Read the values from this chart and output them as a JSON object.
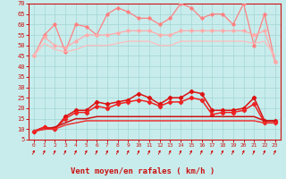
{
  "xlabel": "Vent moyen/en rafales ( km/h )",
  "bg_color": "#c8ecec",
  "grid_color": "#a8d8d8",
  "x": [
    0,
    1,
    2,
    3,
    4,
    5,
    6,
    7,
    8,
    9,
    10,
    11,
    12,
    13,
    14,
    15,
    16,
    17,
    18,
    19,
    20,
    21,
    22,
    23
  ],
  "series": [
    {
      "name": "rafales_max",
      "color": "#ff8080",
      "alpha": 1.0,
      "lw": 0.9,
      "marker": "D",
      "ms": 1.8,
      "values": [
        45,
        55,
        60,
        47,
        60,
        59,
        55,
        65,
        68,
        66,
        63,
        63,
        60,
        63,
        70,
        68,
        63,
        65,
        65,
        60,
        70,
        50,
        65,
        42
      ]
    },
    {
      "name": "rafales_moy1",
      "color": "#ffaaaa",
      "alpha": 1.0,
      "lw": 0.9,
      "marker": "D",
      "ms": 1.8,
      "values": [
        45,
        54,
        50,
        49,
        52,
        55,
        55,
        55,
        56,
        57,
        57,
        57,
        55,
        55,
        57,
        57,
        57,
        57,
        57,
        57,
        57,
        55,
        57,
        42
      ]
    },
    {
      "name": "rafales_moy2",
      "color": "#ffbbbb",
      "alpha": 1.0,
      "lw": 0.9,
      "marker": null,
      "ms": 0,
      "values": [
        45,
        51,
        48,
        47,
        48,
        50,
        50,
        50,
        51,
        52,
        52,
        52,
        50,
        50,
        52,
        52,
        52,
        52,
        52,
        52,
        52,
        51,
        52,
        45
      ]
    },
    {
      "name": "vent_max",
      "color": "#dd1111",
      "alpha": 1.0,
      "lw": 1.1,
      "marker": "D",
      "ms": 2.2,
      "values": [
        9,
        11,
        10,
        16,
        19,
        19,
        23,
        22,
        23,
        24,
        27,
        25,
        22,
        25,
        25,
        28,
        27,
        19,
        19,
        19,
        20,
        25,
        14,
        14
      ]
    },
    {
      "name": "vent_moy1",
      "color": "#ee2222",
      "alpha": 1.0,
      "lw": 1.1,
      "marker": "D",
      "ms": 2.2,
      "values": [
        9,
        11,
        10,
        15,
        18,
        18,
        21,
        20,
        22,
        23,
        24,
        23,
        21,
        23,
        23,
        25,
        24,
        17,
        18,
        18,
        19,
        22,
        13,
        13
      ]
    },
    {
      "name": "vent_smooth1",
      "color": "#cc1111",
      "alpha": 1.0,
      "lw": 1.1,
      "marker": null,
      "ms": 0,
      "values": [
        9,
        10,
        11,
        13,
        15,
        15,
        16,
        16,
        16,
        16,
        16,
        16,
        16,
        16,
        16,
        16,
        16,
        16,
        16,
        16,
        16,
        16,
        14,
        14
      ]
    },
    {
      "name": "vent_smooth2",
      "color": "#ee3333",
      "alpha": 1.0,
      "lw": 1.1,
      "marker": null,
      "ms": 0,
      "values": [
        9,
        10,
        10,
        12,
        13,
        14,
        14,
        14,
        14,
        14,
        14,
        14,
        14,
        14,
        14,
        14,
        14,
        14,
        14,
        14,
        14,
        14,
        13,
        13
      ]
    }
  ],
  "ylim": [
    5,
    70
  ],
  "yticks": [
    5,
    10,
    15,
    20,
    25,
    30,
    35,
    40,
    45,
    50,
    55,
    60,
    65,
    70
  ],
  "xticks": [
    0,
    1,
    2,
    3,
    4,
    5,
    6,
    7,
    8,
    9,
    10,
    11,
    12,
    13,
    14,
    15,
    16,
    17,
    18,
    19,
    20,
    21,
    22,
    23
  ],
  "arrow_color": "#cc1111",
  "axis_color": "#cc1111",
  "tick_color": "#cc1111",
  "label_fontsize": 5.5,
  "xlabel_fontsize": 6.5
}
